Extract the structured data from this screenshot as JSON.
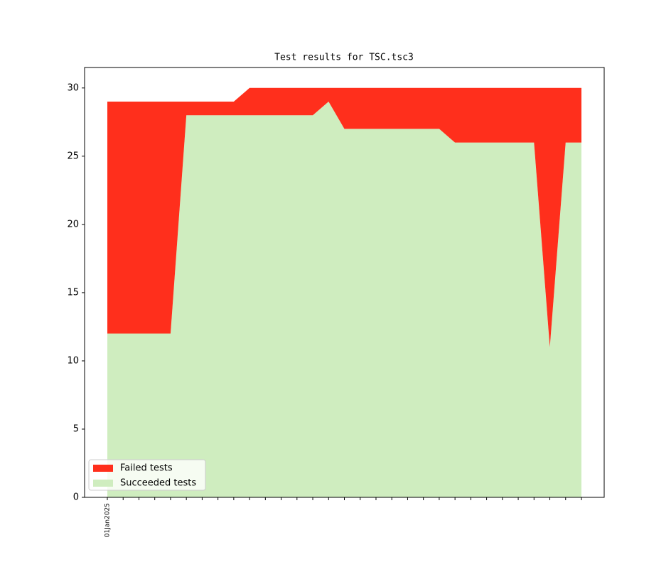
{
  "chart_data": {
    "type": "stacked-area",
    "title": "Test results for TSC.tsc3",
    "categories": [
      "01Jan2025",
      null,
      null,
      null,
      null,
      null,
      null,
      null,
      null,
      null,
      null,
      null,
      null,
      null,
      null,
      null,
      null,
      null,
      null,
      null,
      null,
      null,
      null,
      null,
      null,
      null,
      null,
      null,
      null,
      null,
      null
    ],
    "series": [
      {
        "name": "Failed tests",
        "color": "#ff2f1c",
        "values": [
          17,
          17,
          17,
          17,
          17,
          1,
          1,
          1,
          1,
          2,
          2,
          2,
          2,
          2,
          1,
          3,
          3,
          3,
          3,
          3,
          3,
          3,
          4,
          4,
          4,
          4,
          4,
          4,
          19,
          4,
          4
        ]
      },
      {
        "name": "Succeeded tests",
        "color": "#cfedbf",
        "values": [
          12,
          12,
          12,
          12,
          12,
          28,
          28,
          28,
          28,
          28,
          28,
          28,
          28,
          28,
          29,
          27,
          27,
          27,
          27,
          27,
          27,
          27,
          26,
          26,
          26,
          26,
          26,
          26,
          11,
          26,
          26
        ]
      }
    ],
    "ylim": [
      0,
      31.5
    ],
    "yticks": [
      0,
      5,
      10,
      15,
      20,
      25,
      30
    ],
    "legend": "lower left"
  }
}
